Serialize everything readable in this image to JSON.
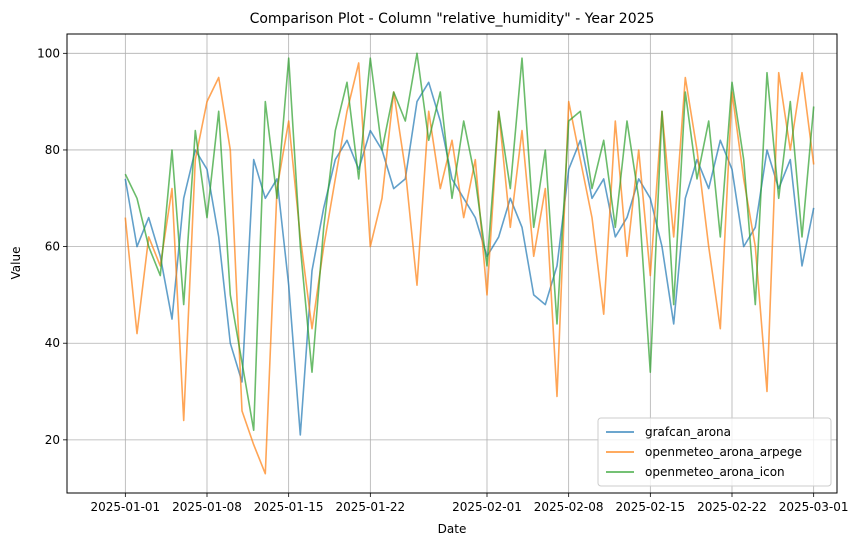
{
  "chart_data": {
    "type": "line",
    "title": "Comparison Plot - Column \"relative_humidity\" - Year 2025",
    "xlabel": "Date",
    "ylabel": "Value",
    "x_range": [
      "2024-12-27",
      "2025-03-03"
    ],
    "ylim": [
      9,
      104
    ],
    "x_ticks": [
      "2025-01-01",
      "2025-01-08",
      "2025-01-15",
      "2025-01-22",
      "2025-02-01",
      "2025-02-08",
      "2025-02-15",
      "2025-02-22",
      "2025-03-01"
    ],
    "y_ticks": [
      20,
      40,
      60,
      80,
      100
    ],
    "grid": true,
    "legend": "lower-right",
    "series": [
      {
        "name": "grafcan_arona",
        "color": "#1f77b4",
        "points": [
          [
            "2025-01-01",
            74
          ],
          [
            "2025-01-02",
            60
          ],
          [
            "2025-01-03",
            66
          ],
          [
            "2025-01-04",
            58
          ],
          [
            "2025-01-05",
            45
          ],
          [
            "2025-01-06",
            70
          ],
          [
            "2025-01-07",
            80
          ],
          [
            "2025-01-08",
            76
          ],
          [
            "2025-01-09",
            62
          ],
          [
            "2025-01-10",
            40
          ],
          [
            "2025-01-11",
            32
          ],
          [
            "2025-01-12",
            78
          ],
          [
            "2025-01-13",
            70
          ],
          [
            "2025-01-14",
            74
          ],
          [
            "2025-01-15",
            52
          ],
          [
            "2025-01-16",
            21
          ],
          [
            "2025-01-17",
            55
          ],
          [
            "2025-01-18",
            68
          ],
          [
            "2025-01-19",
            78
          ],
          [
            "2025-01-20",
            82
          ],
          [
            "2025-01-21",
            76
          ],
          [
            "2025-01-22",
            84
          ],
          [
            "2025-01-23",
            80
          ],
          [
            "2025-01-24",
            72
          ],
          [
            "2025-01-25",
            74
          ],
          [
            "2025-01-26",
            90
          ],
          [
            "2025-01-27",
            94
          ],
          [
            "2025-01-28",
            86
          ],
          [
            "2025-01-29",
            74
          ],
          [
            "2025-01-30",
            70
          ],
          [
            "2025-01-31",
            66
          ],
          [
            "2025-02-01",
            58
          ],
          [
            "2025-02-02",
            62
          ],
          [
            "2025-02-03",
            70
          ],
          [
            "2025-02-04",
            64
          ],
          [
            "2025-02-05",
            50
          ],
          [
            "2025-02-06",
            48
          ],
          [
            "2025-02-07",
            56
          ],
          [
            "2025-02-08",
            76
          ],
          [
            "2025-02-09",
            82
          ],
          [
            "2025-02-10",
            70
          ],
          [
            "2025-02-11",
            74
          ],
          [
            "2025-02-12",
            62
          ],
          [
            "2025-02-13",
            66
          ],
          [
            "2025-02-14",
            74
          ],
          [
            "2025-02-15",
            70
          ],
          [
            "2025-02-16",
            60
          ],
          [
            "2025-02-17",
            44
          ],
          [
            "2025-02-18",
            70
          ],
          [
            "2025-02-19",
            78
          ],
          [
            "2025-02-20",
            72
          ],
          [
            "2025-02-21",
            82
          ],
          [
            "2025-02-22",
            76
          ],
          [
            "2025-02-23",
            60
          ],
          [
            "2025-02-24",
            64
          ],
          [
            "2025-02-25",
            80
          ],
          [
            "2025-02-26",
            72
          ],
          [
            "2025-02-27",
            78
          ],
          [
            "2025-02-28",
            56
          ],
          [
            "2025-03-01",
            68
          ]
        ]
      },
      {
        "name": "openmeteo_arona_arpege",
        "color": "#ff7f0e",
        "points": [
          [
            "2025-01-01",
            66
          ],
          [
            "2025-01-02",
            42
          ],
          [
            "2025-01-03",
            62
          ],
          [
            "2025-01-04",
            56
          ],
          [
            "2025-01-05",
            72
          ],
          [
            "2025-01-06",
            24
          ],
          [
            "2025-01-07",
            78
          ],
          [
            "2025-01-08",
            90
          ],
          [
            "2025-01-09",
            95
          ],
          [
            "2025-01-10",
            80
          ],
          [
            "2025-01-11",
            26
          ],
          [
            "2025-01-12",
            19
          ],
          [
            "2025-01-13",
            13
          ],
          [
            "2025-01-14",
            72
          ],
          [
            "2025-01-15",
            86
          ],
          [
            "2025-01-16",
            62
          ],
          [
            "2025-01-17",
            43
          ],
          [
            "2025-01-18",
            60
          ],
          [
            "2025-01-19",
            74
          ],
          [
            "2025-01-20",
            88
          ],
          [
            "2025-01-21",
            98
          ],
          [
            "2025-01-22",
            60
          ],
          [
            "2025-01-23",
            70
          ],
          [
            "2025-01-24",
            92
          ],
          [
            "2025-01-25",
            76
          ],
          [
            "2025-01-26",
            52
          ],
          [
            "2025-01-27",
            88
          ],
          [
            "2025-01-28",
            72
          ],
          [
            "2025-01-29",
            82
          ],
          [
            "2025-01-30",
            66
          ],
          [
            "2025-01-31",
            78
          ],
          [
            "2025-02-01",
            50
          ],
          [
            "2025-02-02",
            88
          ],
          [
            "2025-02-03",
            64
          ],
          [
            "2025-02-04",
            84
          ],
          [
            "2025-02-05",
            58
          ],
          [
            "2025-02-06",
            72
          ],
          [
            "2025-02-07",
            29
          ],
          [
            "2025-02-08",
            90
          ],
          [
            "2025-02-09",
            78
          ],
          [
            "2025-02-10",
            66
          ],
          [
            "2025-02-11",
            46
          ],
          [
            "2025-02-12",
            86
          ],
          [
            "2025-02-13",
            58
          ],
          [
            "2025-02-14",
            80
          ],
          [
            "2025-02-15",
            54
          ],
          [
            "2025-02-16",
            88
          ],
          [
            "2025-02-17",
            62
          ],
          [
            "2025-02-18",
            95
          ],
          [
            "2025-02-19",
            80
          ],
          [
            "2025-02-20",
            60
          ],
          [
            "2025-02-21",
            43
          ],
          [
            "2025-02-22",
            92
          ],
          [
            "2025-02-23",
            74
          ],
          [
            "2025-02-24",
            60
          ],
          [
            "2025-02-25",
            30
          ],
          [
            "2025-02-26",
            96
          ],
          [
            "2025-02-27",
            80
          ],
          [
            "2025-02-28",
            96
          ],
          [
            "2025-03-01",
            77
          ]
        ]
      },
      {
        "name": "openmeteo_arona_icon",
        "color": "#2ca02c",
        "points": [
          [
            "2025-01-01",
            75
          ],
          [
            "2025-01-02",
            70
          ],
          [
            "2025-01-03",
            60
          ],
          [
            "2025-01-04",
            54
          ],
          [
            "2025-01-05",
            80
          ],
          [
            "2025-01-06",
            48
          ],
          [
            "2025-01-07",
            84
          ],
          [
            "2025-01-08",
            66
          ],
          [
            "2025-01-09",
            88
          ],
          [
            "2025-01-10",
            50
          ],
          [
            "2025-01-11",
            36
          ],
          [
            "2025-01-12",
            22
          ],
          [
            "2025-01-13",
            90
          ],
          [
            "2025-01-14",
            70
          ],
          [
            "2025-01-15",
            99
          ],
          [
            "2025-01-16",
            60
          ],
          [
            "2025-01-17",
            34
          ],
          [
            "2025-01-18",
            64
          ],
          [
            "2025-01-19",
            84
          ],
          [
            "2025-01-20",
            94
          ],
          [
            "2025-01-21",
            74
          ],
          [
            "2025-01-22",
            99
          ],
          [
            "2025-01-23",
            80
          ],
          [
            "2025-01-24",
            92
          ],
          [
            "2025-01-25",
            86
          ],
          [
            "2025-01-26",
            100
          ],
          [
            "2025-01-27",
            82
          ],
          [
            "2025-01-28",
            92
          ],
          [
            "2025-01-29",
            70
          ],
          [
            "2025-01-30",
            86
          ],
          [
            "2025-01-31",
            74
          ],
          [
            "2025-02-01",
            56
          ],
          [
            "2025-02-02",
            88
          ],
          [
            "2025-02-03",
            72
          ],
          [
            "2025-02-04",
            99
          ],
          [
            "2025-02-05",
            64
          ],
          [
            "2025-02-06",
            80
          ],
          [
            "2025-02-07",
            44
          ],
          [
            "2025-02-08",
            86
          ],
          [
            "2025-02-09",
            88
          ],
          [
            "2025-02-10",
            72
          ],
          [
            "2025-02-11",
            82
          ],
          [
            "2025-02-12",
            64
          ],
          [
            "2025-02-13",
            86
          ],
          [
            "2025-02-14",
            70
          ],
          [
            "2025-02-15",
            34
          ],
          [
            "2025-02-16",
            88
          ],
          [
            "2025-02-17",
            48
          ],
          [
            "2025-02-18",
            92
          ],
          [
            "2025-02-19",
            74
          ],
          [
            "2025-02-20",
            86
          ],
          [
            "2025-02-21",
            62
          ],
          [
            "2025-02-22",
            94
          ],
          [
            "2025-02-23",
            78
          ],
          [
            "2025-02-24",
            48
          ],
          [
            "2025-02-25",
            96
          ],
          [
            "2025-02-26",
            70
          ],
          [
            "2025-02-27",
            90
          ],
          [
            "2025-02-28",
            62
          ],
          [
            "2025-03-01",
            89
          ]
        ]
      }
    ]
  }
}
